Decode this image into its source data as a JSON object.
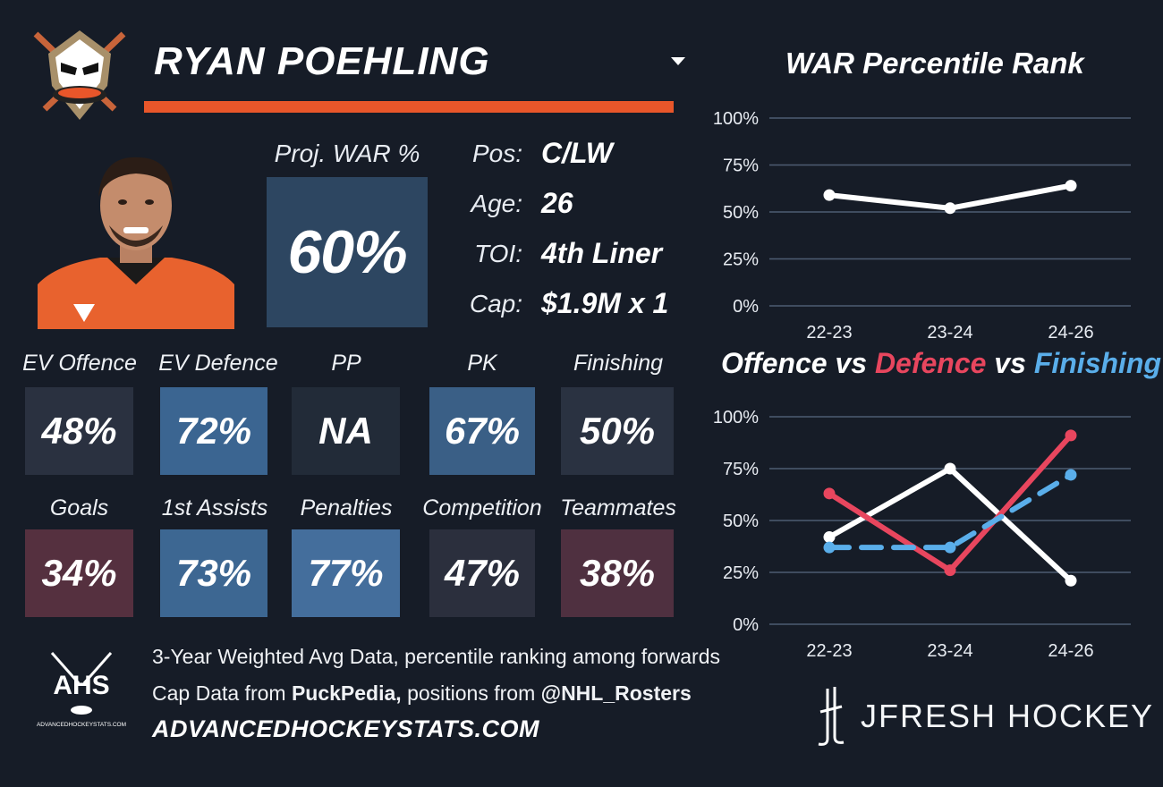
{
  "player": {
    "name": "RYAN POEHLING",
    "proj_war_label": "Proj. WAR %",
    "proj_war_value": "60%",
    "bio": [
      {
        "label": "Pos:",
        "value": "C/LW"
      },
      {
        "label": "Age:",
        "value": "26"
      },
      {
        "label": "TOI:",
        "value": "4th Liner"
      },
      {
        "label": "Cap:",
        "value": "$1.9M x 1"
      }
    ]
  },
  "tiles_row1": [
    {
      "label": "EV Offence",
      "value": "48%",
      "color": "#2a3140"
    },
    {
      "label": "EV Defence",
      "value": "72%",
      "color": "#3b6591"
    },
    {
      "label": "PP",
      "value": "NA",
      "color": "#222b38"
    },
    {
      "label": "PK",
      "value": "67%",
      "color": "#3a5f86"
    },
    {
      "label": "Finishing",
      "value": "50%",
      "color": "#2a3241"
    }
  ],
  "tiles_row2": [
    {
      "label": "Goals",
      "value": "34%",
      "color": "#55303f"
    },
    {
      "label": "1st Assists",
      "value": "73%",
      "color": "#3d6792"
    },
    {
      "label": "Penalties",
      "value": "77%",
      "color": "#446e9c"
    },
    {
      "label": "Competition",
      "value": "47%",
      "color": "#2b2f3d"
    },
    {
      "label": "Teammates",
      "value": "38%",
      "color": "#4f3040"
    }
  ],
  "footer": {
    "ahs_text": "AHS",
    "ahs_small": "ADVANCEDHOCKEYSTATS.COM",
    "line1": "3-Year Weighted Avg Data, percentile ranking among forwards",
    "line2_prefix": "Cap Data from ",
    "line2_bold1": "PuckPedia,",
    "line2_mid": " positions from ",
    "line2_bold2": "@NHL_Rosters",
    "site": "ADVANCEDHOCKEYSTATS.COM",
    "brand": "JFRESH HOCKEY"
  },
  "chart_data": [
    {
      "type": "line",
      "title": "WAR Percentile Rank",
      "categories": [
        "22-23",
        "23-24",
        "24-26"
      ],
      "series": [
        {
          "values": [
            59,
            52,
            64
          ],
          "color": "#ffffff",
          "dashed": false
        }
      ],
      "ylim": [
        0,
        100
      ],
      "yticks": [
        "0%",
        "25%",
        "50%",
        "75%",
        "100%"
      ],
      "grid": true
    },
    {
      "type": "line",
      "title_parts": [
        {
          "text": "Offence",
          "color": "#ffffff"
        },
        {
          "text": " vs ",
          "color": "#ffffff"
        },
        {
          "text": "Defence",
          "color": "#e8465e"
        },
        {
          "text": " vs ",
          "color": "#ffffff"
        },
        {
          "text": "Finishing",
          "color": "#5aaeea"
        }
      ],
      "categories": [
        "22-23",
        "23-24",
        "24-26"
      ],
      "series": [
        {
          "name": "Offence",
          "values": [
            42,
            75,
            21
          ],
          "color": "#ffffff",
          "dashed": false
        },
        {
          "name": "Defence",
          "values": [
            63,
            26,
            91
          ],
          "color": "#e8465e",
          "dashed": false
        },
        {
          "name": "Finishing",
          "values": [
            37,
            37,
            72
          ],
          "color": "#5aaeea",
          "dashed": true
        }
      ],
      "ylim": [
        0,
        100
      ],
      "yticks": [
        "0%",
        "25%",
        "50%",
        "75%",
        "100%"
      ],
      "grid": true
    }
  ]
}
